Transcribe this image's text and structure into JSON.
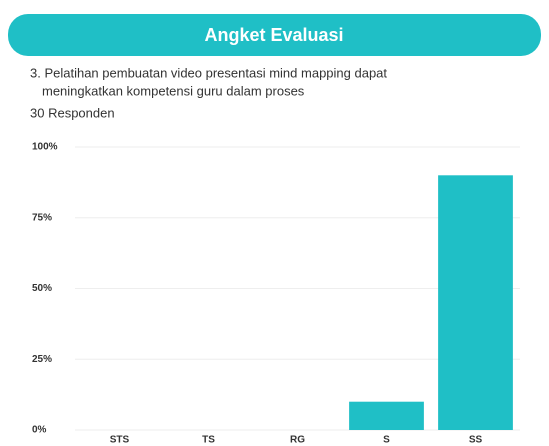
{
  "header": {
    "title": "Angket Evaluasi"
  },
  "question_lines": [
    "3. Pelatihan pembuatan video presentasi mind mapping dapat",
    "meningkatkan kompetensi guru dalam proses"
  ],
  "respondents": "30 Responden",
  "chart_data": {
    "type": "bar",
    "categories": [
      "STS",
      "TS",
      "RG",
      "S",
      "SS"
    ],
    "values": [
      0,
      0,
      0,
      10,
      90
    ],
    "color": "#1fbfc6",
    "ylim": [
      0,
      100
    ],
    "yticks": [
      {
        "value": 0,
        "label": "0%"
      },
      {
        "value": 25,
        "label": "25%"
      },
      {
        "value": 50,
        "label": "50%"
      },
      {
        "value": 75,
        "label": "75%"
      },
      {
        "value": 100,
        "label": "100%"
      }
    ],
    "grid": true
  }
}
